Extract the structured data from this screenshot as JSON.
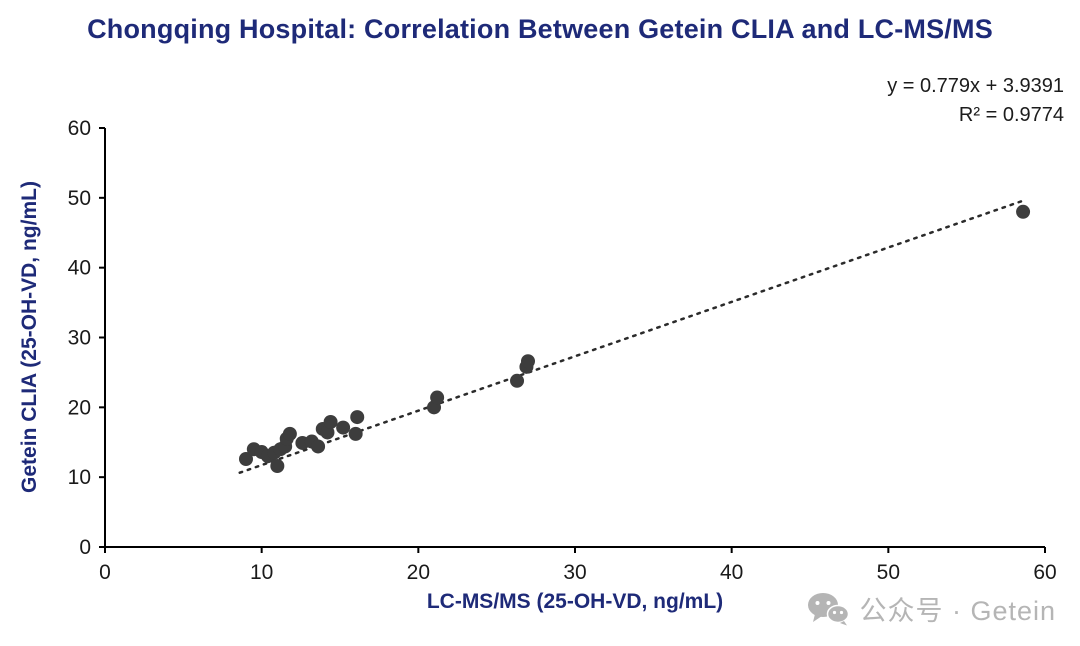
{
  "colors": {
    "title_navy": "#1e2a78",
    "axis_label_navy": "#1e2a78",
    "axis_line": "#000000",
    "tick_text": "#1a1a1a",
    "point_fill": "#3d3d3d",
    "trendline": "#2b2b2b",
    "annotation_text": "#1c1c1c",
    "watermark_gray": "#b5b5b5"
  },
  "watermark": {
    "icon": "wechat-icon",
    "text": "公众号 · Getein"
  },
  "chart_data": {
    "type": "scatter",
    "title": "Chongqing Hospital: Correlation Between Getein CLIA and LC-MS/MS",
    "xlabel": "LC-MS/MS (25-OH-VD, ng/mL)",
    "ylabel": "Getein CLIA (25-OH-VD, ng/mL)",
    "xlim": [
      0,
      60
    ],
    "ylim": [
      0,
      60
    ],
    "xticks": [
      0,
      10,
      20,
      30,
      40,
      50,
      60
    ],
    "yticks": [
      0,
      10,
      20,
      30,
      40,
      50,
      60
    ],
    "grid": false,
    "legend": false,
    "annotations": {
      "equation": "y = 0.779x + 3.9391",
      "r_squared": "R² = 0.9774"
    },
    "points": [
      [
        9.0,
        12.6
      ],
      [
        9.5,
        14.0
      ],
      [
        10.0,
        13.6
      ],
      [
        10.4,
        13.0
      ],
      [
        10.8,
        13.5
      ],
      [
        11.0,
        11.6
      ],
      [
        11.2,
        14.0
      ],
      [
        11.5,
        14.4
      ],
      [
        11.6,
        15.5
      ],
      [
        11.8,
        16.2
      ],
      [
        12.6,
        14.9
      ],
      [
        13.2,
        15.1
      ],
      [
        13.6,
        14.4
      ],
      [
        13.9,
        16.9
      ],
      [
        14.2,
        16.4
      ],
      [
        14.4,
        17.9
      ],
      [
        15.2,
        17.1
      ],
      [
        16.0,
        16.2
      ],
      [
        16.1,
        18.6
      ],
      [
        21.0,
        20.0
      ],
      [
        21.2,
        21.4
      ],
      [
        26.3,
        23.8
      ],
      [
        26.9,
        25.8
      ],
      [
        27.0,
        26.6
      ],
      [
        58.6,
        48.0
      ]
    ],
    "trendline": {
      "slope": 0.779,
      "intercept": 3.9391,
      "style": "dotted",
      "x_range": [
        8.6,
        58.6
      ]
    }
  }
}
